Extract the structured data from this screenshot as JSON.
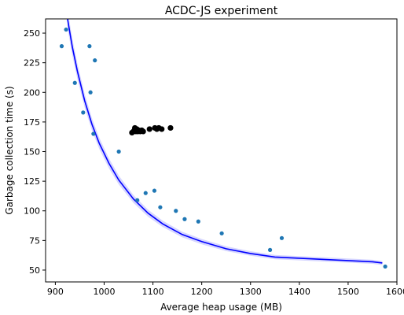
{
  "chart_data": {
    "type": "scatter",
    "title": "ACDC-JS experiment",
    "xlabel": "Average heap usage (MB)",
    "ylabel": "Garbage collection time (s)",
    "xlim": [
      880,
      1600
    ],
    "ylim": [
      40,
      262
    ],
    "xticks": [
      900,
      1000,
      1100,
      1200,
      1300,
      1400,
      1500,
      1600
    ],
    "yticks": [
      50,
      75,
      100,
      125,
      150,
      175,
      200,
      225,
      250
    ],
    "grid": false,
    "legend": "none",
    "series": [
      {
        "type": "scatter",
        "color": "#1f77b4",
        "points": [
          [
            913,
            239
          ],
          [
            922,
            253
          ],
          [
            940,
            208
          ],
          [
            957,
            183
          ],
          [
            970,
            239
          ],
          [
            972,
            200
          ],
          [
            978,
            165
          ],
          [
            981,
            227
          ],
          [
            1030,
            150
          ],
          [
            1068,
            109
          ],
          [
            1085,
            115
          ],
          [
            1103,
            117
          ],
          [
            1115,
            103
          ],
          [
            1147,
            100
          ],
          [
            1165,
            93
          ],
          [
            1193,
            91
          ],
          [
            1241,
            81
          ],
          [
            1340,
            67
          ],
          [
            1364,
            77
          ],
          [
            1576,
            53
          ]
        ]
      },
      {
        "type": "scatter",
        "color": "#000000",
        "points": [
          [
            1057,
            166
          ],
          [
            1060,
            167
          ],
          [
            1062,
            168
          ],
          [
            1063,
            170
          ],
          [
            1065,
            167
          ],
          [
            1067,
            169
          ],
          [
            1069,
            167
          ],
          [
            1071,
            168
          ],
          [
            1074,
            167
          ],
          [
            1077,
            168
          ],
          [
            1080,
            167
          ],
          [
            1093,
            169
          ],
          [
            1104,
            170
          ],
          [
            1108,
            169
          ],
          [
            1112,
            170
          ],
          [
            1118,
            169
          ],
          [
            1136,
            170
          ]
        ]
      },
      {
        "type": "line",
        "color": "#0000ff",
        "band_color": "#ccccff",
        "x": [
          925,
          935,
          945,
          960,
          975,
          990,
          1010,
          1030,
          1060,
          1090,
          1120,
          1160,
          1200,
          1250,
          1300,
          1350,
          1400,
          1450,
          1500,
          1550,
          1570
        ],
        "y": [
          262,
          238,
          218,
          193,
          173,
          157,
          140,
          126,
          110,
          98,
          89,
          80,
          74,
          68,
          64,
          61,
          60,
          59,
          58,
          57,
          56
        ]
      }
    ]
  }
}
